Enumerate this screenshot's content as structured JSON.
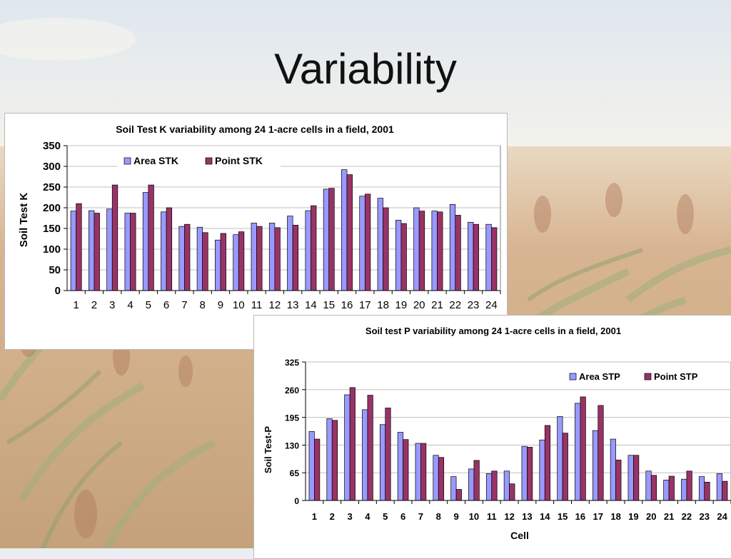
{
  "slide": {
    "title": "Variability"
  },
  "chart_data": [
    {
      "type": "bar",
      "title": "Soil Test K variability among 24 1-acre cells in a field, 2001",
      "xlabel": "",
      "ylabel": "Soil Test K",
      "ylim": [
        0,
        350
      ],
      "yticks": [
        0,
        50,
        100,
        150,
        200,
        250,
        300,
        350
      ],
      "grid": true,
      "legend": "top-left",
      "categories": [
        "1",
        "2",
        "3",
        "4",
        "5",
        "6",
        "7",
        "8",
        "9",
        "10",
        "11",
        "12",
        "13",
        "14",
        "15",
        "16",
        "17",
        "18",
        "19",
        "20",
        "21",
        "22",
        "23",
        "24"
      ],
      "series": [
        {
          "name": "Area STK",
          "color": "#9999ff",
          "values": [
            192,
            193,
            197,
            187,
            237,
            190,
            155,
            153,
            122,
            135,
            163,
            163,
            180,
            193,
            245,
            292,
            228,
            223,
            170,
            200,
            192,
            208,
            165,
            160
          ]
        },
        {
          "name": "Point STK",
          "color": "#993366",
          "values": [
            210,
            187,
            255,
            187,
            255,
            200,
            160,
            140,
            138,
            142,
            155,
            152,
            158,
            205,
            247,
            280,
            233,
            200,
            162,
            192,
            190,
            182,
            160,
            152
          ]
        }
      ]
    },
    {
      "type": "bar",
      "title": "Soil test P variability among 24 1-acre cells in a field, 2001",
      "xlabel": "Cell",
      "ylabel": "Soil Test-P",
      "ylim": [
        0,
        325
      ],
      "yticks": [
        0,
        65,
        130,
        195,
        260,
        325
      ],
      "grid": true,
      "legend": "top-right",
      "categories": [
        "1",
        "2",
        "3",
        "4",
        "5",
        "6",
        "7",
        "8",
        "9",
        "10",
        "11",
        "12",
        "13",
        "14",
        "15",
        "16",
        "17",
        "18",
        "19",
        "20",
        "21",
        "22",
        "23",
        "24"
      ],
      "series": [
        {
          "name": "Area STP",
          "color": "#9999ff",
          "values": [
            162,
            192,
            248,
            213,
            178,
            160,
            134,
            106,
            56,
            74,
            63,
            69,
            127,
            142,
            197,
            228,
            164,
            144,
            106,
            69,
            48,
            50,
            56,
            63
          ]
        },
        {
          "name": "Point STP",
          "color": "#993366",
          "values": [
            144,
            188,
            265,
            247,
            217,
            143,
            134,
            101,
            26,
            94,
            69,
            39,
            125,
            176,
            158,
            243,
            223,
            95,
            106,
            59,
            57,
            69,
            43,
            45
          ]
        }
      ]
    }
  ]
}
